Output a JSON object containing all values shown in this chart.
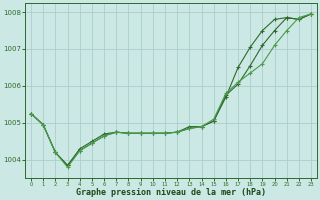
{
  "x": [
    0,
    1,
    2,
    3,
    4,
    5,
    6,
    7,
    8,
    9,
    10,
    11,
    12,
    13,
    14,
    15,
    16,
    17,
    18,
    19,
    20,
    21,
    22,
    23
  ],
  "line1": [
    1005.25,
    1004.95,
    1004.2,
    1003.85,
    1004.3,
    1004.5,
    1004.7,
    1004.75,
    1004.72,
    1004.72,
    1004.72,
    1004.72,
    1004.75,
    1004.9,
    1004.9,
    1005.05,
    1005.75,
    1006.05,
    1006.55,
    1007.1,
    1007.5,
    1007.85,
    1007.8,
    1007.95
  ],
  "line2": [
    1005.25,
    1004.95,
    1004.2,
    1003.85,
    1004.25,
    1004.45,
    1004.65,
    1004.75,
    1004.72,
    1004.72,
    1004.72,
    1004.72,
    1004.75,
    1004.85,
    1004.9,
    1005.05,
    1005.7,
    1006.5,
    1007.05,
    1007.5,
    1007.8,
    1007.85,
    1007.8,
    1007.95
  ],
  "line3": [
    1005.25,
    1004.95,
    1004.2,
    1003.8,
    1004.25,
    1004.45,
    1004.65,
    1004.75,
    1004.72,
    1004.72,
    1004.72,
    1004.72,
    1004.75,
    1004.85,
    1004.9,
    1005.1,
    1005.8,
    1006.1,
    1006.35,
    1006.6,
    1007.1,
    1007.5,
    1007.85,
    1007.95
  ],
  "line_color1": "#2d6a2d",
  "line_color2": "#2d6a2d",
  "line_color3": "#4a9a4a",
  "bg_color": "#cce8e4",
  "grid_color": "#aaceca",
  "axis_label_color": "#1a4a1a",
  "tick_color": "#2d6a2d",
  "xlabel": "Graphe pression niveau de la mer (hPa)",
  "ylim": [
    1003.5,
    1008.25
  ],
  "xlim": [
    -0.5,
    23.5
  ],
  "yticks": [
    1004,
    1005,
    1006,
    1007,
    1008
  ],
  "xticks": [
    0,
    1,
    2,
    3,
    4,
    5,
    6,
    7,
    8,
    9,
    10,
    11,
    12,
    13,
    14,
    15,
    16,
    17,
    18,
    19,
    20,
    21,
    22,
    23
  ]
}
